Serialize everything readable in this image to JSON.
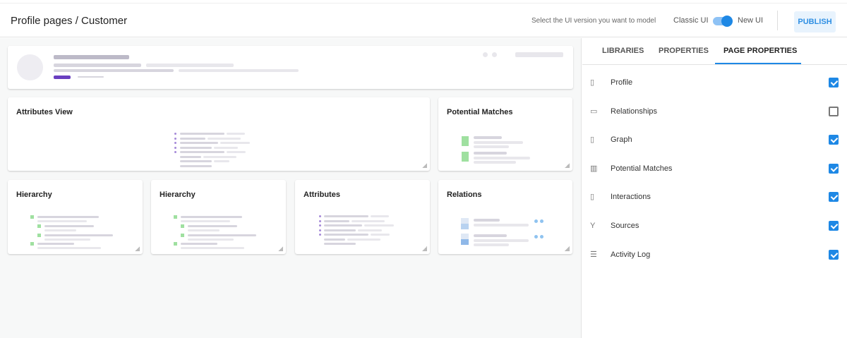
{
  "header": {
    "title": "Profile pages / Customer",
    "hint": "Select the UI version you want to model",
    "classic_label": "Classic UI",
    "new_label": "New UI",
    "toggle_on": true,
    "publish_label": "PUBLISH"
  },
  "canvas": {
    "cards": [
      "Attributes View",
      "Potential Matches",
      "Hierarchy",
      "Hierarchy",
      "Attributes",
      "Relations"
    ]
  },
  "panel": {
    "tabs": [
      "LIBRARIES",
      "PROPERTIES",
      "PAGE PROPERTIES"
    ],
    "active_tab": "PAGE PROPERTIES",
    "items": [
      {
        "label": "Profile",
        "icon": "profile-icon",
        "checked": true
      },
      {
        "label": "Relationships",
        "icon": "relationships-icon",
        "checked": false
      },
      {
        "label": "Graph",
        "icon": "graph-icon",
        "checked": true
      },
      {
        "label": "Potential Matches",
        "icon": "potential-matches-icon",
        "checked": true
      },
      {
        "label": "Interactions",
        "icon": "interactions-icon",
        "checked": true
      },
      {
        "label": "Sources",
        "icon": "sources-icon",
        "checked": true
      },
      {
        "label": "Activity Log",
        "icon": "activity-log-icon",
        "checked": true
      }
    ]
  },
  "colors": {
    "accent": "#1e88e5",
    "publish_bg": "#e8f3fd",
    "skeleton_accent": "#6a3fc0"
  }
}
